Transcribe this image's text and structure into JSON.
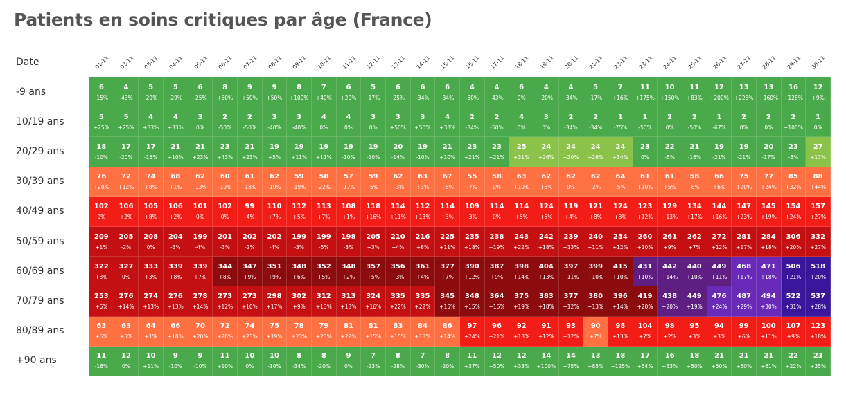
{
  "title": "Patients en soins critiques par âge (France)",
  "chart_data": {
    "type": "heatmap",
    "title": "Patients en soins critiques par âge (France)",
    "row_header": "Date",
    "columns": [
      "01-11",
      "02-11",
      "03-11",
      "04-11",
      "05-11",
      "06-11",
      "07-11",
      "08-11",
      "09-11",
      "10-11",
      "11-11",
      "12-11",
      "13-11",
      "14-11",
      "15-11",
      "16-11",
      "17-11",
      "18-11",
      "19-11",
      "20-11",
      "21-11",
      "22-11",
      "23-11",
      "24-11",
      "25-11",
      "26-11",
      "27-11",
      "28-11",
      "29-11",
      "30-11"
    ],
    "rows": [
      {
        "label": "-9 ans",
        "values": [
          6,
          4,
          5,
          5,
          6,
          8,
          9,
          9,
          8,
          7,
          6,
          5,
          6,
          6,
          6,
          4,
          4,
          6,
          4,
          4,
          5,
          7,
          11,
          10,
          11,
          12,
          13,
          13,
          16,
          12
        ],
        "changes": [
          "-15%",
          "-43%",
          "-29%",
          "-29%",
          "-25%",
          "+60%",
          "+50%",
          "+50%",
          "+100%",
          "+40%",
          "+20%",
          "-17%",
          "-25%",
          "-34%",
          "-34%",
          "-50%",
          "-43%",
          "0%",
          "-20%",
          "-34%",
          "-17%",
          "+16%",
          "+175%",
          "+150%",
          "+83%",
          "+200%",
          "+225%",
          "+160%",
          "+128%",
          "+9%"
        ]
      },
      {
        "label": "10/19 ans",
        "values": [
          5,
          5,
          4,
          4,
          3,
          2,
          2,
          3,
          3,
          4,
          4,
          3,
          3,
          3,
          4,
          2,
          2,
          4,
          3,
          2,
          2,
          1,
          1,
          2,
          2,
          1,
          2,
          2,
          2,
          1
        ],
        "changes": [
          "+25%",
          "+25%",
          "+33%",
          "+33%",
          "0%",
          "-50%",
          "-50%",
          "-40%",
          "-40%",
          "0%",
          "0%",
          "0%",
          "+50%",
          "+50%",
          "+33%",
          "-34%",
          "-50%",
          "0%",
          "0%",
          "-34%",
          "-34%",
          "-75%",
          "-50%",
          "0%",
          "-50%",
          "-67%",
          "0%",
          "0%",
          "+100%",
          "0%"
        ]
      },
      {
        "label": "20/29 ans",
        "values": [
          18,
          17,
          17,
          21,
          21,
          23,
          21,
          19,
          19,
          19,
          19,
          19,
          20,
          19,
          21,
          23,
          23,
          25,
          24,
          24,
          24,
          24,
          23,
          22,
          21,
          19,
          19,
          20,
          23,
          27
        ],
        "changes": [
          "-10%",
          "-20%",
          "-15%",
          "+10%",
          "+23%",
          "+43%",
          "+23%",
          "+5%",
          "+11%",
          "+11%",
          "-10%",
          "-10%",
          "-14%",
          "-10%",
          "+10%",
          "+21%",
          "+21%",
          "+31%",
          "+26%",
          "+20%",
          "+26%",
          "+14%",
          "0%",
          "-5%",
          "-16%",
          "-21%",
          "-21%",
          "-17%",
          "-5%",
          "+17%"
        ]
      },
      {
        "label": "30/39 ans",
        "values": [
          76,
          72,
          74,
          68,
          62,
          60,
          61,
          62,
          59,
          58,
          57,
          59,
          62,
          63,
          67,
          55,
          58,
          63,
          62,
          62,
          62,
          64,
          61,
          61,
          58,
          66,
          75,
          77,
          85,
          88
        ],
        "changes": [
          "+20%",
          "+12%",
          "+8%",
          "+1%",
          "-13%",
          "-19%",
          "-18%",
          "-19%",
          "-19%",
          "-22%",
          "-17%",
          "-5%",
          "+3%",
          "+3%",
          "+8%",
          "-7%",
          "0%",
          "+10%",
          "+5%",
          "0%",
          "-2%",
          "-5%",
          "+10%",
          "+5%",
          "-8%",
          "+6%",
          "+20%",
          "+24%",
          "+32%",
          "+44%"
        ]
      },
      {
        "label": "40/49 ans",
        "values": [
          102,
          106,
          105,
          106,
          101,
          102,
          99,
          110,
          112,
          113,
          108,
          118,
          114,
          112,
          114,
          109,
          114,
          114,
          124,
          119,
          121,
          124,
          123,
          129,
          134,
          144,
          147,
          145,
          154,
          157
        ],
        "changes": [
          "0%",
          "+2%",
          "+8%",
          "+2%",
          "0%",
          "0%",
          "-4%",
          "+7%",
          "+5%",
          "+7%",
          "+1%",
          "+16%",
          "+11%",
          "+13%",
          "+3%",
          "-3%",
          "0%",
          "+5%",
          "+5%",
          "+4%",
          "+8%",
          "+8%",
          "+12%",
          "+13%",
          "+17%",
          "+16%",
          "+23%",
          "+19%",
          "+24%",
          "+27%"
        ]
      },
      {
        "label": "50/59 ans",
        "values": [
          209,
          205,
          208,
          204,
          199,
          201,
          202,
          202,
          199,
          199,
          198,
          205,
          210,
          216,
          225,
          235,
          238,
          243,
          242,
          239,
          240,
          254,
          260,
          261,
          262,
          272,
          281,
          284,
          306,
          332
        ],
        "changes": [
          "+1%",
          "-2%",
          "0%",
          "-3%",
          "-4%",
          "-3%",
          "-2%",
          "-4%",
          "-3%",
          "-5%",
          "-3%",
          "+3%",
          "+4%",
          "+8%",
          "+11%",
          "+18%",
          "+19%",
          "+22%",
          "+18%",
          "+13%",
          "+11%",
          "+12%",
          "+10%",
          "+9%",
          "+7%",
          "+12%",
          "+17%",
          "+18%",
          "+20%",
          "+27%"
        ]
      },
      {
        "label": "60/69 ans",
        "values": [
          322,
          327,
          333,
          339,
          339,
          344,
          347,
          351,
          348,
          352,
          348,
          357,
          356,
          361,
          377,
          390,
          387,
          398,
          404,
          397,
          399,
          415,
          431,
          442,
          440,
          449,
          468,
          471,
          506,
          518
        ],
        "changes": [
          "+3%",
          "0%",
          "+3%",
          "+8%",
          "+7%",
          "+8%",
          "+9%",
          "+9%",
          "+6%",
          "+5%",
          "+2%",
          "+5%",
          "+3%",
          "+4%",
          "+7%",
          "+12%",
          "+9%",
          "+14%",
          "+13%",
          "+11%",
          "+10%",
          "+10%",
          "+10%",
          "+14%",
          "+10%",
          "+11%",
          "+17%",
          "+18%",
          "+21%",
          "+20%"
        ]
      },
      {
        "label": "70/79 ans",
        "values": [
          253,
          276,
          274,
          276,
          278,
          273,
          273,
          298,
          302,
          312,
          313,
          324,
          335,
          335,
          345,
          348,
          364,
          375,
          383,
          377,
          380,
          396,
          419,
          438,
          449,
          476,
          487,
          494,
          522,
          537
        ],
        "changes": [
          "+6%",
          "+14%",
          "+13%",
          "+13%",
          "+14%",
          "+12%",
          "+10%",
          "+17%",
          "+9%",
          "+13%",
          "+13%",
          "+16%",
          "+22%",
          "+22%",
          "+15%",
          "+15%",
          "+16%",
          "+19%",
          "+18%",
          "+12%",
          "+13%",
          "+14%",
          "+20%",
          "+20%",
          "+19%",
          "+24%",
          "+29%",
          "+30%",
          "+31%",
          "+28%"
        ]
      },
      {
        "label": "80/89 ans",
        "values": [
          63,
          63,
          64,
          66,
          70,
          72,
          74,
          75,
          78,
          79,
          81,
          81,
          83,
          84,
          86,
          97,
          96,
          92,
          91,
          93,
          90,
          98,
          104,
          98,
          95,
          94,
          99,
          100,
          107,
          123
        ],
        "changes": [
          "+6%",
          "+5%",
          "+1%",
          "+10%",
          "+20%",
          "+20%",
          "+23%",
          "+19%",
          "+23%",
          "+23%",
          "+22%",
          "+15%",
          "+15%",
          "+13%",
          "+14%",
          "+24%",
          "+21%",
          "+13%",
          "+12%",
          "+12%",
          "+7%",
          "+13%",
          "+7%",
          "+2%",
          "+3%",
          "+3%",
          "+6%",
          "+11%",
          "+9%",
          "+18%"
        ]
      },
      {
        "label": "+90 ans",
        "values": [
          11,
          12,
          10,
          9,
          9,
          11,
          10,
          10,
          8,
          8,
          9,
          7,
          8,
          7,
          8,
          11,
          12,
          12,
          14,
          14,
          13,
          18,
          17,
          16,
          18,
          21,
          21,
          21,
          22,
          23
        ],
        "changes": [
          "-16%",
          "0%",
          "+11%",
          "-10%",
          "-10%",
          "+10%",
          "0%",
          "-10%",
          "-34%",
          "-20%",
          "0%",
          "-23%",
          "-28%",
          "-30%",
          "-20%",
          "+37%",
          "+50%",
          "+33%",
          "+100%",
          "+75%",
          "+85%",
          "+125%",
          "+54%",
          "+33%",
          "+50%",
          "+50%",
          "+50%",
          "+61%",
          "+22%",
          "+35%"
        ]
      }
    ],
    "color_scale": [
      {
        "max": 23,
        "color": "#4aa94a"
      },
      {
        "max": 27,
        "color": "#8bc34a"
      },
      {
        "max": 90,
        "color": "#ff7043"
      },
      {
        "max": 160,
        "color": "#f21d16"
      },
      {
        "max": 340,
        "color": "#c41012"
      },
      {
        "max": 425,
        "color": "#8c0b0e"
      },
      {
        "max": 460,
        "color": "#5e1e82"
      },
      {
        "max": 500,
        "color": "#6a2ab8"
      },
      {
        "max": 9999,
        "color": "#3a169a"
      }
    ]
  }
}
